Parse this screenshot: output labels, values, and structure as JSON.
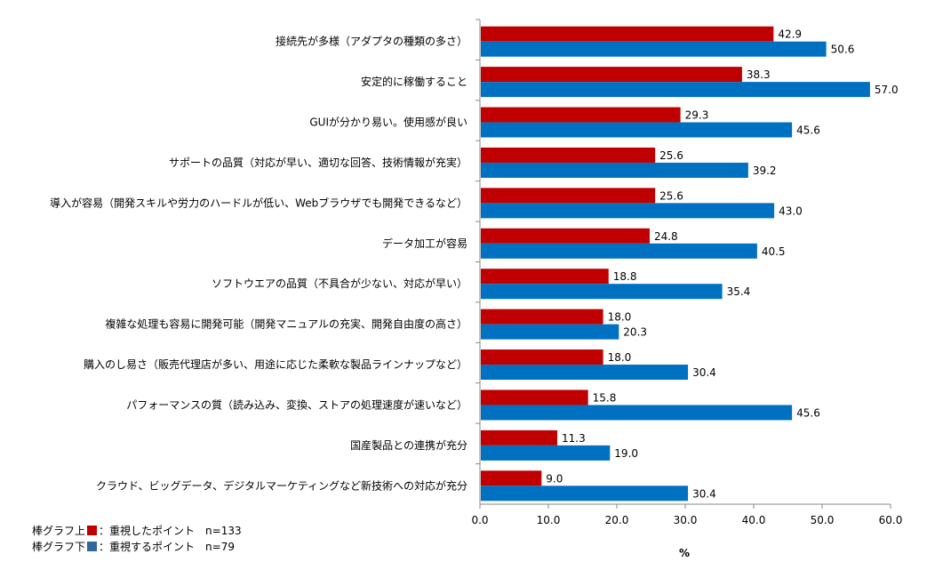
{
  "chart_data": {
    "type": "bar",
    "orientation": "horizontal",
    "categories": [
      "接続先が多様（アダプタの種類の多さ）",
      "安定的に稼働すること",
      "GUIが分かり易い。使用感が良い",
      "サポートの品質（対応が早い、適切な回答、技術情報が充実）",
      "導入が容易（開発スキルや労力のハードルが低い、Webブラウザでも開発できるなど）",
      "データ加工が容易",
      "ソフトウエアの品質（不具合が少ない、対応が早い）",
      "複雑な処理も容易に開発可能（開発マニュアルの充実、開発自由度の高さ）",
      "購入のし易さ（販売代理店が多い、用途に応じた柔軟な製品ラインナップなど）",
      "パフォーマンスの質（読み込み、変換、ストアの処理速度が速いなど）",
      "国産製品との連携が充分",
      "クラウド、ビッグデータ、デジタルマーケティングなど新技術への対応が充分"
    ],
    "series": [
      {
        "name": "重視したポイント",
        "color": "#C00000",
        "values": [
          42.9,
          38.3,
          29.3,
          25.6,
          25.6,
          24.8,
          18.8,
          18.0,
          18.0,
          15.8,
          11.3,
          9.0
        ]
      },
      {
        "name": "重視するポイント",
        "color": "#0070C0",
        "values": [
          50.6,
          57.0,
          45.6,
          39.2,
          43.0,
          40.5,
          35.4,
          20.3,
          30.4,
          45.6,
          19.0,
          30.4
        ]
      }
    ],
    "xlim": [
      0,
      60
    ],
    "xticks": [
      "0.0",
      "10.0",
      "20.0",
      "30.0",
      "40.0",
      "50.0",
      "60.0"
    ],
    "xlabel": "%",
    "legend_placement": "bottom-left"
  },
  "legend": [
    {
      "prefix": "棒グラフ上",
      "label": "：重視したポイント",
      "n": "n=133",
      "color": "#C00000"
    },
    {
      "prefix": "棒グラフ下",
      "label": "：重視するポイント",
      "n": "n=79",
      "color": "#336699"
    }
  ]
}
